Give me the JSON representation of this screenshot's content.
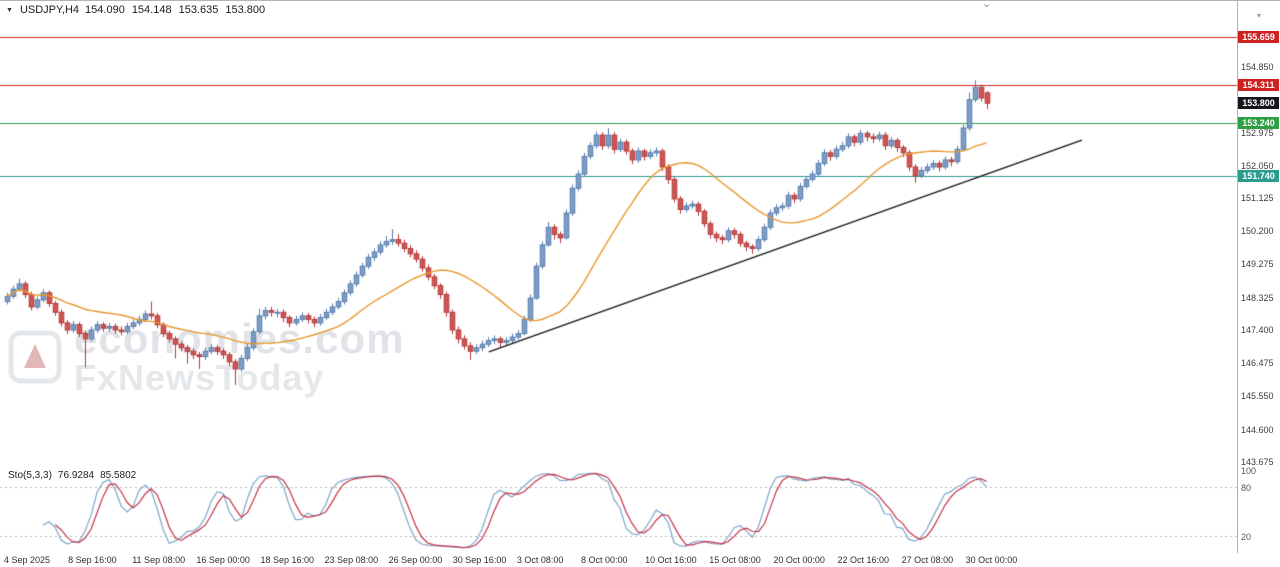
{
  "header": {
    "symbol": "USDJPY,H4",
    "open": "154.090",
    "high": "154.148",
    "low": "153.635",
    "close": "153.800"
  },
  "icons": {
    "dropdown": "▼",
    "scroll_marker": "⌄",
    "scale_arrow": "▾"
  },
  "watermark": {
    "line1": "economies.com",
    "line2": "FxNewsToday"
  },
  "colors": {
    "up_fill": "#7b9cc7",
    "up_stroke": "#5b7fae",
    "down_fill": "#cf5454",
    "down_stroke": "#b53b3b",
    "ma": "#e8972e",
    "trend": "#141414",
    "sto_main": "#7fa6ca",
    "sto_signal": "#c53448",
    "dotted_level": "#b8b8b8",
    "tag_current_bg": "#14161c"
  },
  "price_axis": {
    "ticks": [
      "154.850",
      "152.975",
      "152.050",
      "151.125",
      "150.200",
      "149.275",
      "148.325",
      "147.400",
      "146.475",
      "145.550",
      "144.600",
      "143.675"
    ]
  },
  "levels": [
    {
      "label": "155.659",
      "price": 155.659,
      "color": "#cc2222",
      "line": true,
      "kind": "resistance"
    },
    {
      "label": "154.311",
      "price": 154.311,
      "color": "#cc2222",
      "line": true,
      "kind": "resistance"
    },
    {
      "label": "153.800",
      "price": 153.8,
      "color": "#14161c",
      "line": false,
      "kind": "current"
    },
    {
      "label": "153.240",
      "price": 153.24,
      "color": "#2f9e44",
      "line": true,
      "kind": "support"
    },
    {
      "label": "151.740",
      "price": 151.74,
      "color": "#2a9d8f",
      "line": true,
      "kind": "support"
    }
  ],
  "time_axis": {
    "labels": [
      {
        "text": "4 Sep 2025",
        "bar": 0
      },
      {
        "text": "8 Sep 16:00",
        "bar": 16
      },
      {
        "text": "11 Sep 08:00",
        "bar": 32
      },
      {
        "text": "16 Sep 00:00",
        "bar": 48
      },
      {
        "text": "18 Sep 16:00",
        "bar": 64
      },
      {
        "text": "23 Sep 08:00",
        "bar": 80
      },
      {
        "text": "26 Sep 00:00",
        "bar": 96
      },
      {
        "text": "30 Sep 16:00",
        "bar": 112
      },
      {
        "text": "3 Oct 08:00",
        "bar": 128
      },
      {
        "text": "8 Oct 00:00",
        "bar": 144
      },
      {
        "text": "10 Oct 16:00",
        "bar": 160
      },
      {
        "text": "15 Oct 08:00",
        "bar": 176
      },
      {
        "text": "20 Oct 00:00",
        "bar": 192
      },
      {
        "text": "22 Oct 16:00",
        "bar": 208
      },
      {
        "text": "27 Oct 08:00",
        "bar": 224
      },
      {
        "text": "30 Oct 00:00",
        "bar": 240
      }
    ]
  },
  "chart_data": {
    "type": "candlestick",
    "symbol": "USDJPY",
    "timeframe": "H4",
    "title": "USDJPY H4 candlestick chart with Stochastic(5,3,3)",
    "ylim": [
      143.3,
      156.8
    ],
    "bars_per_candle": 1.5,
    "candles": [
      [
        148.2,
        148.45,
        148.12,
        148.35
      ],
      [
        148.35,
        148.65,
        148.28,
        148.55
      ],
      [
        148.55,
        148.85,
        148.48,
        148.7
      ],
      [
        148.7,
        148.78,
        148.3,
        148.4
      ],
      [
        148.4,
        148.48,
        147.95,
        148.05
      ],
      [
        148.05,
        148.35,
        147.98,
        148.25
      ],
      [
        148.25,
        148.55,
        148.18,
        148.45
      ],
      [
        148.45,
        148.52,
        148.05,
        148.15
      ],
      [
        148.15,
        148.22,
        147.8,
        147.9
      ],
      [
        147.9,
        147.98,
        147.5,
        147.6
      ],
      [
        147.6,
        147.68,
        147.28,
        147.4
      ],
      [
        147.4,
        147.65,
        147.32,
        147.55
      ],
      [
        147.55,
        147.62,
        147.2,
        147.3
      ],
      [
        147.3,
        147.38,
        146.35,
        147.15
      ],
      [
        147.15,
        147.5,
        147.08,
        147.4
      ],
      [
        147.4,
        147.65,
        147.32,
        147.55
      ],
      [
        147.55,
        147.62,
        147.35,
        147.45
      ],
      [
        147.45,
        147.6,
        147.35,
        147.5
      ],
      [
        147.5,
        147.58,
        147.3,
        147.4
      ],
      [
        147.4,
        147.5,
        147.25,
        147.35
      ],
      [
        147.35,
        147.6,
        147.28,
        147.5
      ],
      [
        147.5,
        147.7,
        147.42,
        147.6
      ],
      [
        147.6,
        147.8,
        147.52,
        147.7
      ],
      [
        147.7,
        147.95,
        147.62,
        147.85
      ],
      [
        147.85,
        148.2,
        147.7,
        147.8
      ],
      [
        147.8,
        147.88,
        147.45,
        147.55
      ],
      [
        147.55,
        147.62,
        147.2,
        147.3
      ],
      [
        147.3,
        147.38,
        147.05,
        147.15
      ],
      [
        147.15,
        147.22,
        146.6,
        147.0
      ],
      [
        147.0,
        147.08,
        146.8,
        146.9
      ],
      [
        146.9,
        146.98,
        146.45,
        146.8
      ],
      [
        146.8,
        146.88,
        146.58,
        146.7
      ],
      [
        146.7,
        146.78,
        146.3,
        146.65
      ],
      [
        146.65,
        146.9,
        146.55,
        146.8
      ],
      [
        146.8,
        147.0,
        146.72,
        146.9
      ],
      [
        146.9,
        146.98,
        146.7,
        146.8
      ],
      [
        146.8,
        146.88,
        146.58,
        146.7
      ],
      [
        146.7,
        146.78,
        146.38,
        146.5
      ],
      [
        146.5,
        146.58,
        145.85,
        146.3
      ],
      [
        146.3,
        146.7,
        146.22,
        146.6
      ],
      [
        146.6,
        147.0,
        146.52,
        146.9
      ],
      [
        146.9,
        147.45,
        146.82,
        147.35
      ],
      [
        147.35,
        148.0,
        147.28,
        147.8
      ],
      [
        147.8,
        148.05,
        147.7,
        147.95
      ],
      [
        147.95,
        148.05,
        147.78,
        147.9
      ],
      [
        147.9,
        148.0,
        147.75,
        147.9
      ],
      [
        147.9,
        147.98,
        147.62,
        147.75
      ],
      [
        147.75,
        147.82,
        147.48,
        147.6
      ],
      [
        147.6,
        147.8,
        147.52,
        147.7
      ],
      [
        147.7,
        147.9,
        147.62,
        147.8
      ],
      [
        147.8,
        147.88,
        147.58,
        147.7
      ],
      [
        147.7,
        147.78,
        147.48,
        147.6
      ],
      [
        147.6,
        147.85,
        147.52,
        147.75
      ],
      [
        147.75,
        148.0,
        147.68,
        147.9
      ],
      [
        147.9,
        148.15,
        147.82,
        148.05
      ],
      [
        148.05,
        148.3,
        147.98,
        148.2
      ],
      [
        148.2,
        148.55,
        148.12,
        148.45
      ],
      [
        148.45,
        148.8,
        148.38,
        148.7
      ],
      [
        148.7,
        149.05,
        148.62,
        148.95
      ],
      [
        148.95,
        149.3,
        148.88,
        149.2
      ],
      [
        149.2,
        149.55,
        149.12,
        149.45
      ],
      [
        149.45,
        149.7,
        149.35,
        149.6
      ],
      [
        149.6,
        149.9,
        149.52,
        149.8
      ],
      [
        149.8,
        150.05,
        149.72,
        149.9
      ],
      [
        149.9,
        150.25,
        149.8,
        149.95
      ],
      [
        149.95,
        150.1,
        149.75,
        149.85
      ],
      [
        149.85,
        149.95,
        149.6,
        149.7
      ],
      [
        149.7,
        149.8,
        149.45,
        149.55
      ],
      [
        149.55,
        149.65,
        149.3,
        149.4
      ],
      [
        149.4,
        149.48,
        149.05,
        149.15
      ],
      [
        149.15,
        149.25,
        148.8,
        148.9
      ],
      [
        148.9,
        148.98,
        148.55,
        148.65
      ],
      [
        148.65,
        148.72,
        148.28,
        148.4
      ],
      [
        148.4,
        148.48,
        147.78,
        147.9
      ],
      [
        147.9,
        147.98,
        147.28,
        147.4
      ],
      [
        147.4,
        147.5,
        147.02,
        147.15
      ],
      [
        147.15,
        147.25,
        146.85,
        146.95
      ],
      [
        146.95,
        147.05,
        146.55,
        146.8
      ],
      [
        146.8,
        147.0,
        146.72,
        146.9
      ],
      [
        146.9,
        147.1,
        146.8,
        147.0
      ],
      [
        147.0,
        147.2,
        146.92,
        147.1
      ],
      [
        147.1,
        147.25,
        147.0,
        147.15
      ],
      [
        147.15,
        147.22,
        146.92,
        147.05
      ],
      [
        147.05,
        147.2,
        146.95,
        147.1
      ],
      [
        147.1,
        147.3,
        147.02,
        147.2
      ],
      [
        147.2,
        147.4,
        147.12,
        147.3
      ],
      [
        147.3,
        147.8,
        147.25,
        147.7
      ],
      [
        147.7,
        148.4,
        147.62,
        148.3
      ],
      [
        148.3,
        149.3,
        148.25,
        149.2
      ],
      [
        149.2,
        149.9,
        149.12,
        149.8
      ],
      [
        149.8,
        150.45,
        149.75,
        150.3
      ],
      [
        150.3,
        150.38,
        149.95,
        150.1
      ],
      [
        150.1,
        150.18,
        149.85,
        150.0
      ],
      [
        150.0,
        150.8,
        149.95,
        150.7
      ],
      [
        150.7,
        151.5,
        150.62,
        151.4
      ],
      [
        151.4,
        151.9,
        151.32,
        151.8
      ],
      [
        151.8,
        152.4,
        151.72,
        152.3
      ],
      [
        152.3,
        152.7,
        152.22,
        152.6
      ],
      [
        152.6,
        153.0,
        152.52,
        152.9
      ],
      [
        152.9,
        152.98,
        152.48,
        152.6
      ],
      [
        152.6,
        153.1,
        152.52,
        152.9
      ],
      [
        152.9,
        152.98,
        152.38,
        152.5
      ],
      [
        152.5,
        152.8,
        152.42,
        152.7
      ],
      [
        152.7,
        152.78,
        152.35,
        152.45
      ],
      [
        152.45,
        152.52,
        152.08,
        152.2
      ],
      [
        152.2,
        152.55,
        152.12,
        152.45
      ],
      [
        152.45,
        152.52,
        152.18,
        152.3
      ],
      [
        152.3,
        152.5,
        152.22,
        152.4
      ],
      [
        152.4,
        152.55,
        152.3,
        152.45
      ],
      [
        152.45,
        152.52,
        151.88,
        152.0
      ],
      [
        152.0,
        152.08,
        151.52,
        151.65
      ],
      [
        151.65,
        151.72,
        151.0,
        151.1
      ],
      [
        151.1,
        151.18,
        150.68,
        150.8
      ],
      [
        150.8,
        151.0,
        150.72,
        150.9
      ],
      [
        150.9,
        151.05,
        150.82,
        150.95
      ],
      [
        150.95,
        151.02,
        150.62,
        150.75
      ],
      [
        150.75,
        150.82,
        150.3,
        150.4
      ],
      [
        150.4,
        150.48,
        149.98,
        150.1
      ],
      [
        150.1,
        150.18,
        149.88,
        150.0
      ],
      [
        150.0,
        150.08,
        149.82,
        149.95
      ],
      [
        149.95,
        150.3,
        149.88,
        150.2
      ],
      [
        150.2,
        150.28,
        149.98,
        150.1
      ],
      [
        150.1,
        150.18,
        149.75,
        149.85
      ],
      [
        149.85,
        149.92,
        149.62,
        149.75
      ],
      [
        149.75,
        149.82,
        149.55,
        149.7
      ],
      [
        149.7,
        150.05,
        149.62,
        149.95
      ],
      [
        149.95,
        150.4,
        149.88,
        150.3
      ],
      [
        150.3,
        150.8,
        150.22,
        150.7
      ],
      [
        150.7,
        150.95,
        150.62,
        150.85
      ],
      [
        150.85,
        151.0,
        150.75,
        150.9
      ],
      [
        150.9,
        151.3,
        150.82,
        151.2
      ],
      [
        151.2,
        151.28,
        150.98,
        151.1
      ],
      [
        151.1,
        151.55,
        151.02,
        151.45
      ],
      [
        151.45,
        151.75,
        151.38,
        151.65
      ],
      [
        151.65,
        151.9,
        151.58,
        151.8
      ],
      [
        151.8,
        152.2,
        151.72,
        152.1
      ],
      [
        152.1,
        152.5,
        152.02,
        152.4
      ],
      [
        152.4,
        152.48,
        152.18,
        152.3
      ],
      [
        152.3,
        152.6,
        152.22,
        152.5
      ],
      [
        152.5,
        152.7,
        152.42,
        152.6
      ],
      [
        152.6,
        152.95,
        152.52,
        152.85
      ],
      [
        152.85,
        152.92,
        152.58,
        152.7
      ],
      [
        152.7,
        153.05,
        152.62,
        152.95
      ],
      [
        152.95,
        153.02,
        152.72,
        152.85
      ],
      [
        152.85,
        152.95,
        152.68,
        152.8
      ],
      [
        152.8,
        153.0,
        152.72,
        152.9
      ],
      [
        152.9,
        152.98,
        152.48,
        152.6
      ],
      [
        152.6,
        152.85,
        152.52,
        152.75
      ],
      [
        152.75,
        152.82,
        152.42,
        152.55
      ],
      [
        152.55,
        152.62,
        152.28,
        152.4
      ],
      [
        152.4,
        152.48,
        151.88,
        152.0
      ],
      [
        152.0,
        152.08,
        151.55,
        151.75
      ],
      [
        151.75,
        152.0,
        151.68,
        151.9
      ],
      [
        151.9,
        152.1,
        151.82,
        152.0
      ],
      [
        152.0,
        152.2,
        151.92,
        152.1
      ],
      [
        152.1,
        152.18,
        151.88,
        152.0
      ],
      [
        152.0,
        152.3,
        151.92,
        152.2
      ],
      [
        152.2,
        152.28,
        152.02,
        152.15
      ],
      [
        152.15,
        152.6,
        152.08,
        152.5
      ],
      [
        152.5,
        153.2,
        152.45,
        153.1
      ],
      [
        153.1,
        154.1,
        153.02,
        153.9
      ],
      [
        153.9,
        154.45,
        153.82,
        154.25
      ],
      [
        154.25,
        154.32,
        153.85,
        153.95
      ],
      [
        154.09,
        154.148,
        153.635,
        153.8
      ]
    ],
    "moving_average": {
      "type": "SMA",
      "period": 20,
      "color": "orange"
    },
    "trendline": {
      "from": {
        "bar": 121,
        "price": 146.78
      },
      "to": {
        "bar": 269,
        "price": 152.76
      }
    },
    "horizontal_lines": [
      {
        "price": 155.659,
        "color": "red"
      },
      {
        "price": 154.311,
        "color": "red"
      },
      {
        "price": 153.24,
        "color": "green"
      },
      {
        "price": 151.74,
        "color": "teal-green"
      }
    ],
    "indicator": {
      "name": "Sto(5,3,3)",
      "value1": "76.9284",
      "value2": "85.5802",
      "levels": [
        "100",
        "80",
        "20"
      ],
      "range": [
        0,
        100
      ],
      "legend_position": "top-left"
    }
  }
}
